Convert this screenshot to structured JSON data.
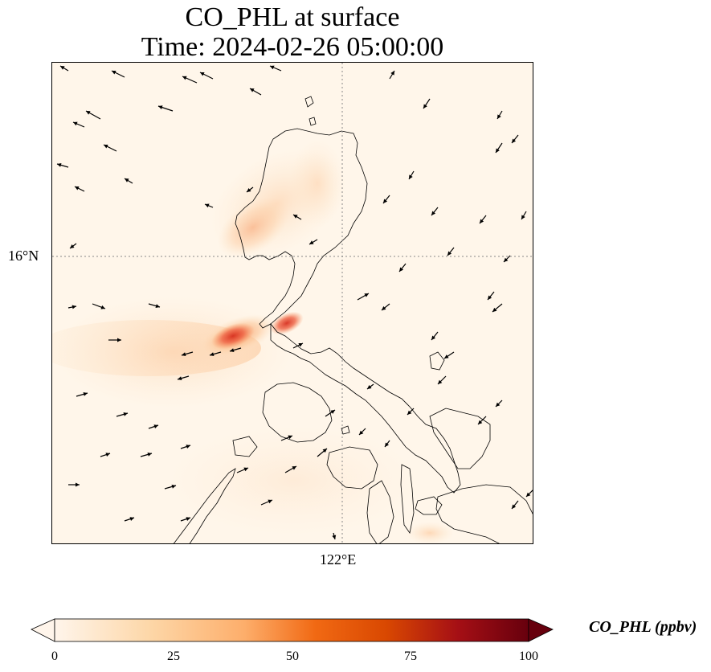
{
  "title": {
    "line1": "CO_PHL at surface",
    "line2": "Time: 2024-02-26 05:00:00"
  },
  "map": {
    "lat_label": "16°N",
    "lon_label": "122°E",
    "background_color": "#fff6ea",
    "coastline_color": "#000000",
    "gridline_color": "#888888",
    "plume_colors": [
      "#fde3c4",
      "#fcc79a",
      "#f7955f",
      "#ee6244",
      "#d7301f"
    ]
  },
  "colorbar": {
    "label": "CO_PHL (ppbv)",
    "ticks": [
      "0",
      "25",
      "50",
      "75",
      "100"
    ],
    "min": 0,
    "max": 100,
    "extend": "both",
    "colormap": [
      "#fff5eb",
      "#fdd7a8",
      "#fdae6b",
      "#f16913",
      "#d94801",
      "#a50f15",
      "#67000d"
    ]
  }
}
